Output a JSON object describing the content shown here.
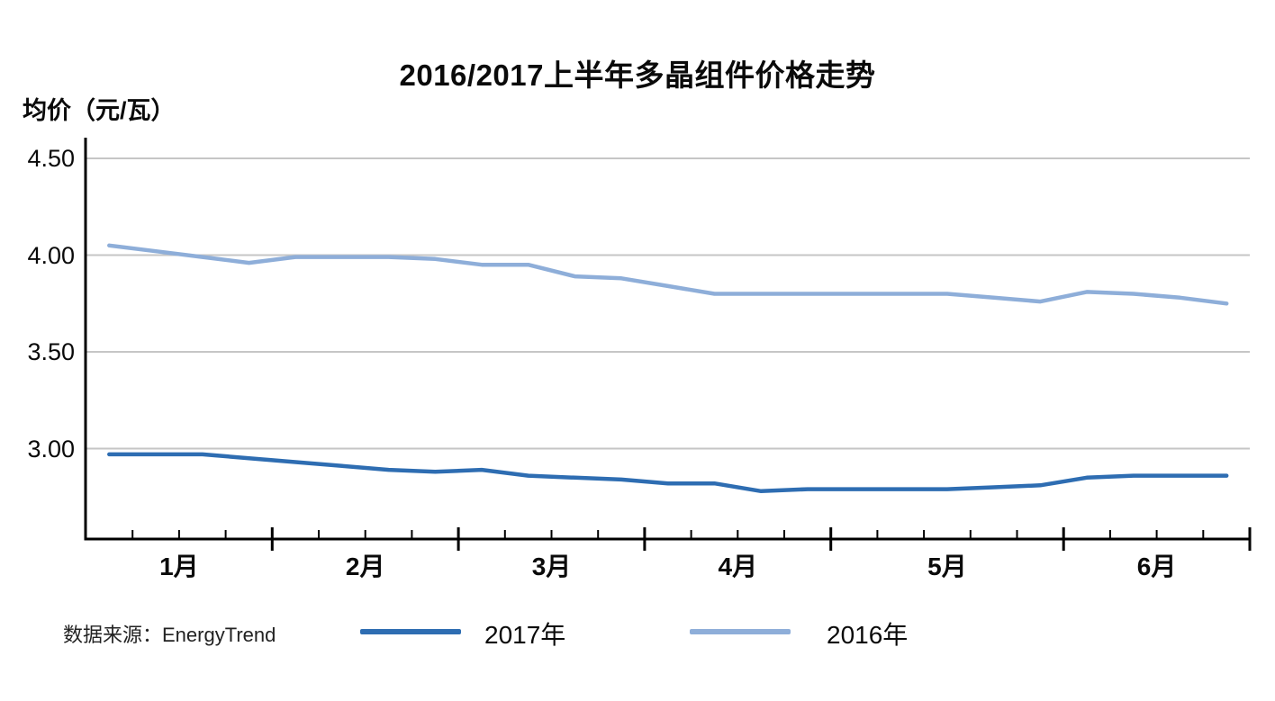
{
  "chart": {
    "title": "2016/2017上半年多晶组件价格走势",
    "y_axis_title": "均价（元/瓦）",
    "source": "数据来源：EnergyTrend"
  },
  "chart_data": {
    "type": "line",
    "title": "2016/2017上半年多晶组件价格走势",
    "ylabel": "均价（元/瓦）",
    "xlabel": "",
    "x_unit": "week",
    "grid": "horizontal-only",
    "legend_position": "bottom",
    "ylim": [
      2.52,
      4.5
    ],
    "y_ticks": [
      {
        "label": "4.50",
        "value": 4.5
      },
      {
        "label": "4.00",
        "value": 4.0
      },
      {
        "label": "3.50",
        "value": 3.5
      },
      {
        "label": "3.00",
        "value": 3.0
      }
    ],
    "months": [
      {
        "label": "1月",
        "weeks": 4
      },
      {
        "label": "2月",
        "weeks": 4
      },
      {
        "label": "3月",
        "weeks": 4
      },
      {
        "label": "4月",
        "weeks": 4
      },
      {
        "label": "5月",
        "weeks": 5
      },
      {
        "label": "6月",
        "weeks": 4
      }
    ],
    "series": [
      {
        "name": "2017年",
        "color": "#2E6DB2",
        "values": [
          2.97,
          2.97,
          2.97,
          2.95,
          2.93,
          2.91,
          2.89,
          2.88,
          2.89,
          2.86,
          2.85,
          2.84,
          2.82,
          2.82,
          2.78,
          2.79,
          2.79,
          2.79,
          2.79,
          2.8,
          2.81,
          2.85,
          2.86,
          2.86,
          2.86
        ]
      },
      {
        "name": "2016年",
        "color": "#8EAED9",
        "values": [
          4.05,
          4.02,
          3.99,
          3.96,
          3.99,
          3.99,
          3.99,
          3.98,
          3.95,
          3.95,
          3.89,
          3.88,
          3.84,
          3.8,
          3.8,
          3.8,
          3.8,
          3.8,
          3.8,
          3.78,
          3.76,
          3.81,
          3.8,
          3.78,
          3.75
        ]
      }
    ],
    "source": "数据来源：EnergyTrend",
    "colors": {
      "axis": "#000000",
      "gridline": "#C6C6C6",
      "series_2017": "#2E6DB2",
      "series_2016": "#8EAED9"
    }
  }
}
